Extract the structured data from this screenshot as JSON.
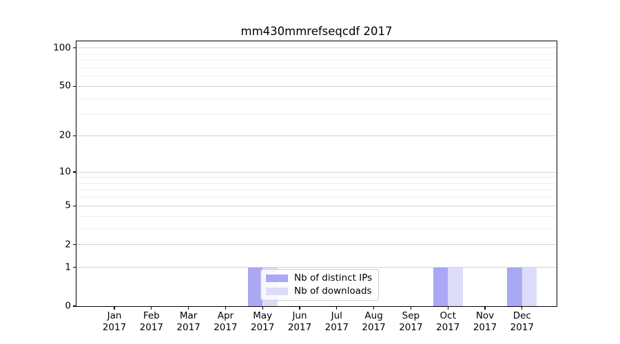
{
  "chart_data": {
    "type": "bar",
    "title": "mm430mmrefseqcdf 2017",
    "categories": [
      "Jan 2017",
      "Feb 2017",
      "Mar 2017",
      "Apr 2017",
      "May 2017",
      "Jun 2017",
      "Jul 2017",
      "Aug 2017",
      "Sep 2017",
      "Oct 2017",
      "Nov 2017",
      "Dec 2017"
    ],
    "x_tick_months": [
      "Jan",
      "Feb",
      "Mar",
      "Apr",
      "May",
      "Jun",
      "Jul",
      "Aug",
      "Sep",
      "Oct",
      "Nov",
      "Dec"
    ],
    "x_tick_year": "2017",
    "series": [
      {
        "name": "Nb of distinct IPs",
        "color": "#a8a8f5",
        "values": [
          0,
          0,
          0,
          0,
          1,
          0,
          0,
          0,
          0,
          1,
          0,
          1
        ]
      },
      {
        "name": "Nb of downloads",
        "color": "#dcdcf9",
        "values": [
          0,
          0,
          0,
          0,
          1,
          0,
          0,
          0,
          0,
          1,
          0,
          1
        ]
      }
    ],
    "yscale": "log1p",
    "ylim": [
      0,
      115
    ],
    "yticks": [
      0,
      1,
      2,
      5,
      10,
      20,
      50,
      100
    ],
    "yticks_minor": [
      3,
      4,
      6,
      7,
      8,
      9,
      30,
      40,
      60,
      70,
      80,
      90
    ],
    "grid": "horizontal",
    "legend": {
      "position": "inside-bottom-center",
      "items": [
        "Nb of distinct IPs",
        "Nb of downloads"
      ]
    }
  },
  "colors": {
    "bar_distinct_ips": "#a8a8f5",
    "bar_downloads": "#dcdcf9",
    "grid_major": "#d3d3d3",
    "grid_minor": "#efefef",
    "axis": "#000000",
    "legend_border": "#cccccc",
    "background": "#ffffff",
    "text": "#000000"
  }
}
